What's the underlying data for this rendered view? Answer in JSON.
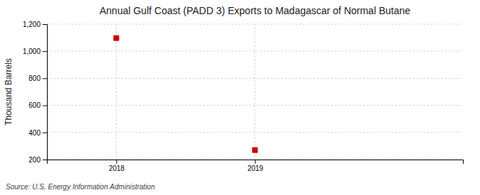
{
  "chart_data": {
    "type": "scatter",
    "title": "Annual Gulf Coast (PADD 3) Exports to Madagascar of Normal Butane",
    "ylabel": "Thousand Barrels",
    "source": "Source: U.S. Energy Information Administration",
    "x": [
      2018,
      2019
    ],
    "values": [
      1097,
      270
    ],
    "color": "#cc0000",
    "marker": "square",
    "xlim": [
      2017.5,
      2020.5
    ],
    "xticks": [
      2018,
      2019
    ],
    "ylim": [
      200,
      1200
    ],
    "yticks": [
      200,
      400,
      600,
      800,
      {
        "value": 1000,
        "label": "1,000"
      },
      {
        "value": 1200,
        "label": "1,200"
      }
    ],
    "grid": true
  }
}
